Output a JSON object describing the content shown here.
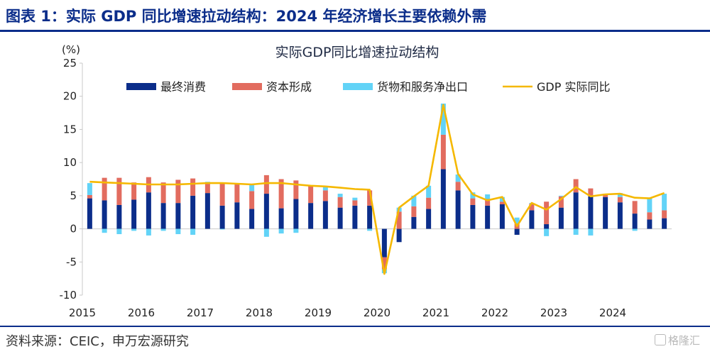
{
  "header": {
    "title": "图表 1：实际 GDP 同比增速拉动结构：2024 年经济增长主要依赖外需"
  },
  "footer": {
    "source": "资料来源：CEIC，申万宏源研究",
    "watermark": "格隆汇"
  },
  "colors": {
    "consumption": "#0b2d8a",
    "investment": "#e26c5f",
    "net_exports": "#62d3f7",
    "gdp": "#f5b800",
    "title": "#0b2d8a"
  },
  "chart_data": {
    "type": "bar",
    "stacked": true,
    "title": "实际GDP同比增速拉动结构",
    "unit": "(%)",
    "ylim": [
      -10,
      25
    ],
    "yticks": [
      25,
      20,
      15,
      10,
      5,
      0,
      -5,
      -10
    ],
    "xtick_labels": [
      "2015",
      "2016",
      "2017",
      "2018",
      "2019",
      "2020",
      "2021",
      "2022",
      "2023",
      "2024"
    ],
    "legend_position": "top",
    "categories": [
      "2015Q1",
      "2015Q2",
      "2015Q3",
      "2015Q4",
      "2016Q1",
      "2016Q2",
      "2016Q3",
      "2016Q4",
      "2017Q1",
      "2017Q2",
      "2017Q3",
      "2017Q4",
      "2018Q1",
      "2018Q2",
      "2018Q3",
      "2018Q4",
      "2019Q1",
      "2019Q2",
      "2019Q3",
      "2019Q4",
      "2020Q1",
      "2020Q2",
      "2020Q3",
      "2020Q4",
      "2021Q1",
      "2021Q2",
      "2021Q3",
      "2021Q4",
      "2022Q1",
      "2022Q2",
      "2022Q3",
      "2022Q4",
      "2023Q1",
      "2023Q2",
      "2023Q3",
      "2023Q4",
      "2024Q1",
      "2024Q2",
      "2024Q3",
      "2024Q4"
    ],
    "series": [
      {
        "name": "最终消费",
        "kind": "bar",
        "values": [
          4.6,
          4.3,
          3.6,
          4.4,
          5.5,
          3.9,
          3.9,
          5.0,
          5.4,
          3.5,
          4.0,
          3.0,
          5.3,
          3.1,
          4.5,
          3.9,
          4.2,
          3.2,
          3.5,
          3.5,
          -4.3,
          -2.0,
          1.8,
          3.0,
          9.0,
          5.8,
          3.6,
          3.5,
          3.7,
          -0.9,
          2.8,
          0.7,
          3.2,
          5.5,
          4.9,
          4.8,
          4.0,
          2.3,
          1.4,
          1.6
        ]
      },
      {
        "name": "资本形成",
        "kind": "bar",
        "values": [
          0.5,
          3.4,
          4.1,
          2.6,
          2.3,
          3.1,
          3.5,
          2.6,
          1.4,
          3.4,
          2.8,
          2.7,
          2.8,
          4.4,
          2.8,
          2.6,
          1.6,
          1.6,
          0.8,
          2.3,
          -1.8,
          2.6,
          1.6,
          1.7,
          5.2,
          1.3,
          1.0,
          1.0,
          0.4,
          0.8,
          1.0,
          3.4,
          1.7,
          2.0,
          1.2,
          0.5,
          0.8,
          1.9,
          1.1,
          1.2
        ]
      },
      {
        "name": "货物和服务净出口",
        "kind": "bar",
        "values": [
          1.8,
          -0.6,
          -0.8,
          -0.3,
          -1.0,
          -0.3,
          -0.8,
          -0.9,
          0.3,
          -0.1,
          0.0,
          0.9,
          -1.2,
          -0.7,
          -0.6,
          0.0,
          0.6,
          0.5,
          0.4,
          -0.3,
          -0.6,
          0.6,
          1.6,
          1.8,
          4.7,
          1.1,
          0.9,
          0.7,
          0.7,
          0.9,
          0.1,
          -1.1,
          0.1,
          -0.9,
          -1.0,
          0.0,
          0.6,
          -0.3,
          2.1,
          2.5
        ]
      },
      {
        "name": "GDP 实际同比",
        "kind": "line",
        "values": [
          7.1,
          7.0,
          6.9,
          6.8,
          6.7,
          6.7,
          6.7,
          6.8,
          6.9,
          6.9,
          6.8,
          6.7,
          6.9,
          6.9,
          6.7,
          6.5,
          6.4,
          6.2,
          6.0,
          5.9,
          -6.8,
          3.2,
          4.9,
          6.5,
          18.7,
          8.3,
          5.2,
          4.3,
          4.8,
          0.4,
          3.9,
          2.9,
          4.5,
          6.3,
          4.9,
          5.2,
          5.3,
          4.7,
          4.6,
          5.4
        ]
      }
    ]
  }
}
